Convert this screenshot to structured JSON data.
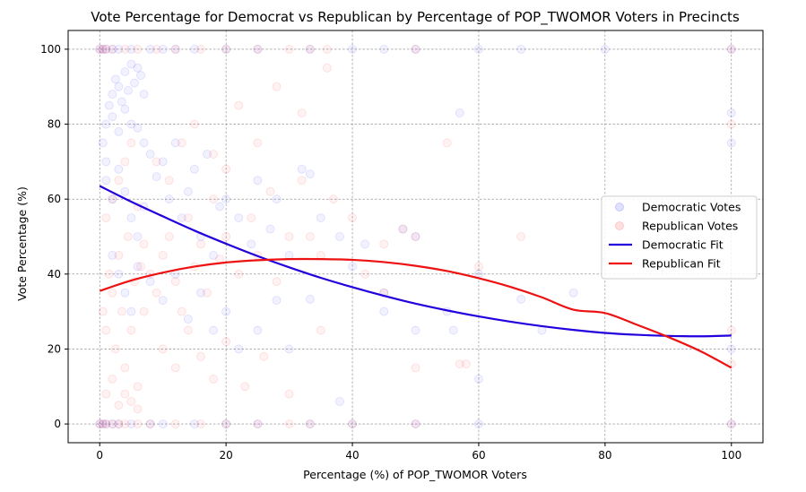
{
  "chart_data": {
    "type": "scatter",
    "title": "Vote Percentage for Democrat vs Republican by Percentage of POP_TWOMOR Voters in Precincts",
    "xlabel": "Percentage (%) of POP_TWOMOR Voters",
    "ylabel": "Vote Percentage (%)",
    "xlim": [
      -5,
      105
    ],
    "ylim": [
      -5,
      105
    ],
    "x_ticks": [
      0,
      20,
      40,
      60,
      80,
      100
    ],
    "y_ticks": [
      0,
      20,
      40,
      60,
      80,
      100
    ],
    "x_tick_labels": [
      "0",
      "20",
      "40",
      "60",
      "80",
      "100"
    ],
    "y_tick_labels": [
      "0",
      "20",
      "40",
      "60",
      "80",
      "100"
    ],
    "grid": true,
    "legend_position": "center-right",
    "series": [
      {
        "name": "Democratic Votes",
        "kind": "scatter",
        "color": "#0000ff",
        "opacity": 0.05,
        "points": [
          [
            0,
            100
          ],
          [
            0.5,
            100
          ],
          [
            1,
            100
          ],
          [
            2,
            100
          ],
          [
            3,
            100
          ],
          [
            5,
            100
          ],
          [
            8,
            100
          ],
          [
            10,
            100
          ],
          [
            12,
            100
          ],
          [
            15,
            100
          ],
          [
            20,
            100
          ],
          [
            25,
            100
          ],
          [
            33.3,
            100
          ],
          [
            40,
            100
          ],
          [
            45,
            100
          ],
          [
            50,
            100
          ],
          [
            60,
            100
          ],
          [
            66.7,
            100
          ],
          [
            80,
            100
          ],
          [
            100,
            100
          ],
          [
            0,
            0
          ],
          [
            0.5,
            0
          ],
          [
            1,
            0
          ],
          [
            2,
            0
          ],
          [
            3,
            0
          ],
          [
            5,
            0
          ],
          [
            8,
            0
          ],
          [
            10,
            0
          ],
          [
            15,
            0
          ],
          [
            20,
            0
          ],
          [
            25,
            0
          ],
          [
            33.3,
            0
          ],
          [
            40,
            0
          ],
          [
            50,
            0
          ],
          [
            60,
            0
          ],
          [
            100,
            0
          ],
          [
            0.5,
            75
          ],
          [
            1,
            70
          ],
          [
            1.5,
            85
          ],
          [
            2,
            88
          ],
          [
            2.5,
            92
          ],
          [
            3,
            90
          ],
          [
            3.5,
            86
          ],
          [
            4,
            94
          ],
          [
            4.5,
            89
          ],
          [
            5,
            96
          ],
          [
            5.5,
            91
          ],
          [
            6,
            95
          ],
          [
            6.5,
            93
          ],
          [
            7,
            88
          ],
          [
            1,
            80
          ],
          [
            2,
            82
          ],
          [
            3,
            78
          ],
          [
            4,
            84
          ],
          [
            5,
            80
          ],
          [
            6,
            79
          ],
          [
            7,
            75
          ],
          [
            1,
            65
          ],
          [
            2,
            60
          ],
          [
            3,
            68
          ],
          [
            4,
            62
          ],
          [
            5,
            55
          ],
          [
            6,
            50
          ],
          [
            7,
            58
          ],
          [
            8,
            72
          ],
          [
            9,
            66
          ],
          [
            10,
            70
          ],
          [
            11,
            60
          ],
          [
            12,
            75
          ],
          [
            13,
            55
          ],
          [
            14,
            62
          ],
          [
            15,
            68
          ],
          [
            16,
            50
          ],
          [
            17,
            72
          ],
          [
            18,
            45
          ],
          [
            19,
            58
          ],
          [
            20,
            60
          ],
          [
            22,
            55
          ],
          [
            24,
            48
          ],
          [
            25,
            65
          ],
          [
            27,
            52
          ],
          [
            28,
            60
          ],
          [
            30,
            45
          ],
          [
            32,
            68
          ],
          [
            33.3,
            66.7
          ],
          [
            35,
            55
          ],
          [
            38,
            50
          ],
          [
            40,
            42
          ],
          [
            42,
            48
          ],
          [
            45,
            35
          ],
          [
            48,
            52
          ],
          [
            50,
            50
          ],
          [
            55,
            30
          ],
          [
            57,
            83
          ],
          [
            60,
            40
          ],
          [
            66.7,
            33.3
          ],
          [
            70,
            25
          ],
          [
            75,
            35
          ],
          [
            100,
            83
          ],
          [
            100,
            75
          ],
          [
            100,
            20
          ],
          [
            2,
            45
          ],
          [
            3,
            40
          ],
          [
            4,
            35
          ],
          [
            5,
            30
          ],
          [
            6,
            42
          ],
          [
            8,
            38
          ],
          [
            10,
            33
          ],
          [
            12,
            40
          ],
          [
            14,
            28
          ],
          [
            16,
            35
          ],
          [
            18,
            25
          ],
          [
            20,
            30
          ],
          [
            22,
            20
          ],
          [
            25,
            25
          ],
          [
            28,
            33
          ],
          [
            30,
            20
          ],
          [
            33.3,
            33.3
          ],
          [
            38,
            6
          ],
          [
            45,
            30
          ],
          [
            50,
            25
          ],
          [
            56,
            25
          ],
          [
            60,
            12
          ]
        ]
      },
      {
        "name": "Republican Votes",
        "kind": "scatter",
        "color": "#ff0000",
        "opacity": 0.05,
        "points": [
          [
            0,
            100
          ],
          [
            0.5,
            100
          ],
          [
            1,
            100
          ],
          [
            2,
            100
          ],
          [
            4,
            100
          ],
          [
            6,
            100
          ],
          [
            9,
            100
          ],
          [
            12,
            100
          ],
          [
            16,
            100
          ],
          [
            20,
            100
          ],
          [
            25,
            100
          ],
          [
            30,
            100
          ],
          [
            33.3,
            100
          ],
          [
            36,
            100
          ],
          [
            50,
            100
          ],
          [
            100,
            100
          ],
          [
            0,
            0
          ],
          [
            0.5,
            0
          ],
          [
            1,
            0
          ],
          [
            2,
            0
          ],
          [
            3,
            0
          ],
          [
            4,
            0
          ],
          [
            6,
            0
          ],
          [
            8,
            0
          ],
          [
            12,
            0
          ],
          [
            16,
            0
          ],
          [
            20,
            0
          ],
          [
            25,
            0
          ],
          [
            30,
            0
          ],
          [
            33.3,
            0
          ],
          [
            40,
            0
          ],
          [
            50,
            0
          ],
          [
            100,
            0
          ],
          [
            0.5,
            30
          ],
          [
            1,
            25
          ],
          [
            1.5,
            40
          ],
          [
            2,
            35
          ],
          [
            2.5,
            20
          ],
          [
            3,
            45
          ],
          [
            3.5,
            30
          ],
          [
            4,
            15
          ],
          [
            4.5,
            50
          ],
          [
            5,
            25
          ],
          [
            5.5,
            38
          ],
          [
            6,
            10
          ],
          [
            6.5,
            42
          ],
          [
            7,
            30
          ],
          [
            1,
            55
          ],
          [
            2,
            60
          ],
          [
            3,
            65
          ],
          [
            4,
            70
          ],
          [
            5,
            75
          ],
          [
            6,
            58
          ],
          [
            7,
            48
          ],
          [
            1,
            8
          ],
          [
            2,
            12
          ],
          [
            3,
            5
          ],
          [
            4,
            8
          ],
          [
            5,
            6
          ],
          [
            6,
            4
          ],
          [
            8,
            40
          ],
          [
            9,
            35
          ],
          [
            10,
            45
          ],
          [
            11,
            50
          ],
          [
            12,
            38
          ],
          [
            13,
            30
          ],
          [
            14,
            55
          ],
          [
            15,
            42
          ],
          [
            16,
            48
          ],
          [
            17,
            35
          ],
          [
            18,
            60
          ],
          [
            19,
            44
          ],
          [
            20,
            50
          ],
          [
            22,
            40
          ],
          [
            24,
            55
          ],
          [
            25,
            45
          ],
          [
            27,
            62
          ],
          [
            28,
            38
          ],
          [
            30,
            50
          ],
          [
            32,
            65
          ],
          [
            33.3,
            50
          ],
          [
            35,
            45
          ],
          [
            37,
            60
          ],
          [
            40,
            55
          ],
          [
            42,
            40
          ],
          [
            45,
            48
          ],
          [
            48,
            52
          ],
          [
            50,
            50
          ],
          [
            55,
            75
          ],
          [
            57,
            16
          ],
          [
            58,
            16
          ],
          [
            60,
            42
          ],
          [
            66.7,
            50
          ],
          [
            100,
            25
          ],
          [
            100,
            80
          ],
          [
            100,
            16
          ],
          [
            9,
            70
          ],
          [
            11,
            65
          ],
          [
            13,
            75
          ],
          [
            15,
            80
          ],
          [
            18,
            72
          ],
          [
            20,
            68
          ],
          [
            22,
            85
          ],
          [
            25,
            75
          ],
          [
            28,
            90
          ],
          [
            32,
            83
          ],
          [
            36,
            95
          ],
          [
            10,
            20
          ],
          [
            12,
            15
          ],
          [
            14,
            25
          ],
          [
            16,
            18
          ],
          [
            18,
            12
          ],
          [
            20,
            22
          ],
          [
            23,
            10
          ],
          [
            26,
            18
          ],
          [
            30,
            8
          ],
          [
            35,
            25
          ],
          [
            45,
            35
          ],
          [
            50,
            15
          ]
        ]
      },
      {
        "name": "Democratic Fit",
        "kind": "line",
        "color": "#2200dd",
        "x": [
          0,
          5,
          10,
          15,
          20,
          25,
          30,
          35,
          40,
          45,
          50,
          55,
          60,
          65,
          70,
          75,
          80,
          85,
          90,
          95,
          100
        ],
        "values": [
          63.5,
          59.3,
          55.4,
          51.6,
          48.1,
          44.8,
          41.8,
          39.0,
          36.5,
          34.2,
          32.1,
          30.3,
          28.7,
          27.3,
          26.1,
          25.1,
          24.3,
          23.8,
          23.5,
          23.4,
          23.6
        ]
      },
      {
        "name": "Republican Fit",
        "kind": "line",
        "color": "#ee1111",
        "x": [
          0,
          5,
          10,
          15,
          20,
          25,
          30,
          35,
          40,
          45,
          50,
          55,
          60,
          65,
          70,
          75,
          80,
          85,
          90,
          95,
          100
        ],
        "values": [
          35.5,
          38.3,
          40.4,
          42.0,
          43.1,
          43.7,
          44.0,
          44.0,
          43.8,
          43.2,
          42.2,
          40.8,
          38.9,
          36.6,
          33.8,
          30.5,
          29.6,
          26.5,
          23.2,
          19.5,
          15.0
        ]
      }
    ]
  }
}
